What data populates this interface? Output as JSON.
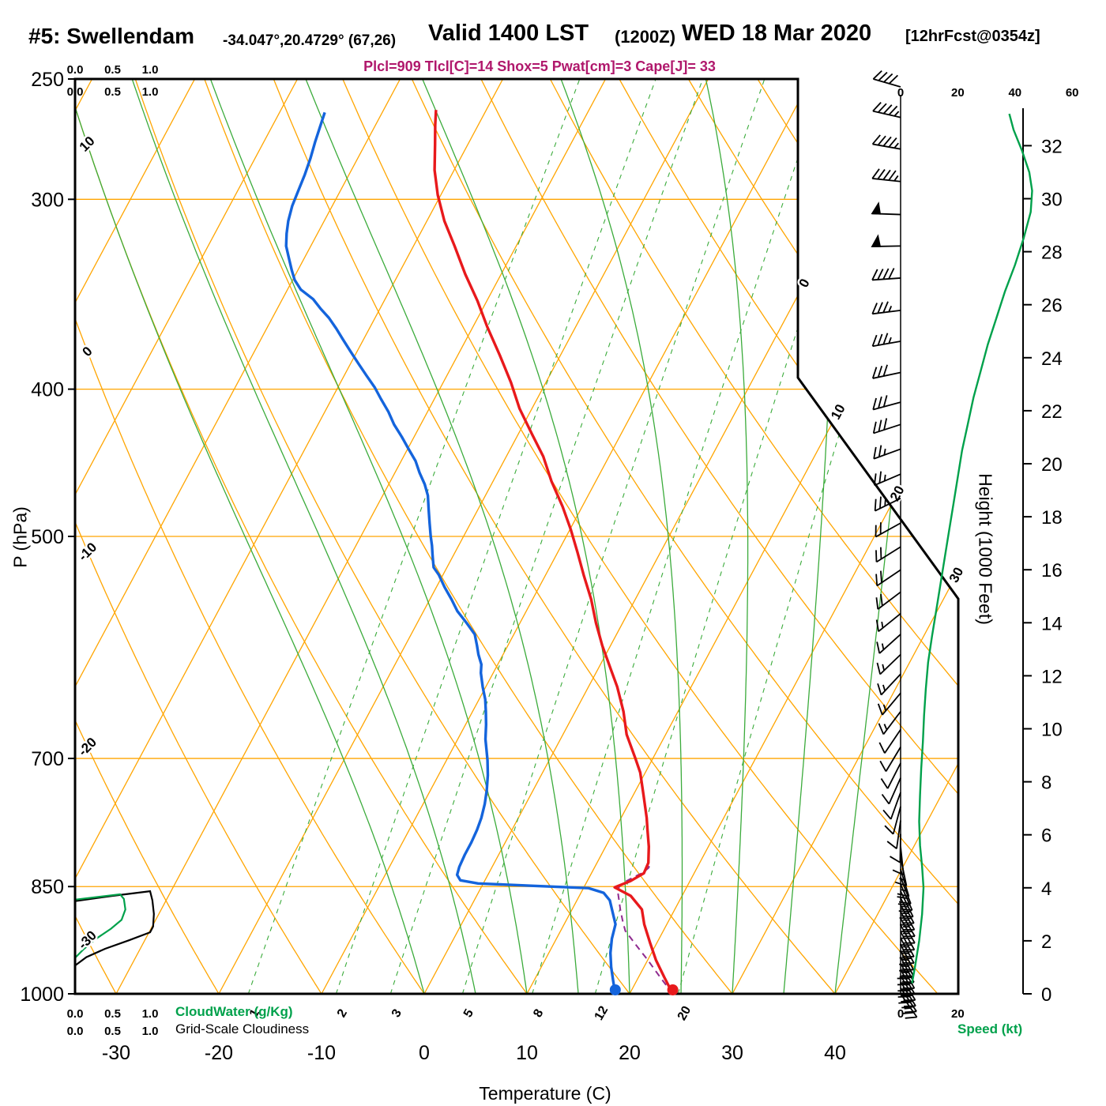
{
  "header": {
    "station": "#5: Swellendam",
    "coords": "-34.047°,20.4729° (67,26)",
    "valid": "Valid 1400 LST",
    "valid_z": "(1200Z)",
    "valid_date": "WED 18 Mar 2020",
    "forecast": "[12hrFcst@0354z]",
    "params": "Plcl=909 Tlcl[C]=14 Shox=5 Pwat[cm]=3 Cape[J]= 33"
  },
  "axes": {
    "pressure": {
      "title": "P (hPa)",
      "ticks": [
        250,
        300,
        400,
        500,
        700,
        850,
        1000
      ]
    },
    "temperature": {
      "title": "Temperature (C)",
      "ticks": [
        -30,
        -20,
        -10,
        0,
        10,
        20,
        30,
        40
      ]
    },
    "height": {
      "title": "Height (1000 Feet)",
      "ticks": [
        32,
        30,
        28,
        26,
        24,
        22,
        20,
        18,
        16,
        14,
        12,
        10,
        8,
        6,
        4,
        2,
        0
      ]
    },
    "speed": {
      "title": "Speed (kt)",
      "top_ticks": [
        0,
        20,
        40,
        60
      ],
      "bottom_ticks": [
        0,
        20
      ]
    },
    "cloud": {
      "green_title": "CloudWater (g/Kg)",
      "black_title": "Grid-Scale Cloudiness",
      "ticks": [
        "0.0",
        "0.5",
        "1.0"
      ]
    }
  },
  "chart_data": {
    "type": "line",
    "subtype": "skew-t log-p sounding",
    "axes_meta": {
      "pressure_hpa_range": [
        250,
        1000
      ],
      "pressure_scale": "log",
      "temperature_c_ticks_range": [
        -30,
        40
      ],
      "height_kft_range": [
        0,
        33
      ],
      "speed_kt_range": [
        0,
        60
      ],
      "cloud_fraction_range": [
        0,
        1
      ]
    },
    "colors": {
      "grid": "#ffa500",
      "green_line": "#3bab3b",
      "green_bold": "#00a14b",
      "temperature": "#e8191c",
      "dewpoint": "#1464dc",
      "parcel": "#8f2a8f",
      "params_text": "#b0186c",
      "frame": "#000000"
    },
    "grid": {
      "isobars": [
        300,
        400,
        500,
        700,
        850,
        1000
      ],
      "isotherms": [
        -80,
        -70,
        -60,
        -50,
        -40,
        -30,
        -20,
        -10,
        0,
        10,
        20,
        30,
        40
      ],
      "isotherm_labels": [
        0,
        10,
        20,
        30
      ],
      "dry_adiabats": [
        -40,
        -30,
        -20,
        -10,
        0,
        10,
        20,
        30,
        40,
        50,
        60,
        70,
        80,
        90,
        100,
        110,
        120,
        130
      ],
      "dry_adiabat_labels": [
        10,
        0,
        -10,
        -20,
        -30
      ],
      "moist_adiabats": [
        0,
        5,
        10,
        15,
        20,
        25,
        30,
        35,
        40
      ],
      "mixing_ratio": [
        1,
        2,
        3,
        5,
        8,
        12,
        20
      ]
    },
    "profiles": {
      "surface_temp": 24.2,
      "surface_dewpoint": 18.6,
      "temperature": [
        [
          1000,
          24.2
        ],
        [
          975,
          22.5
        ],
        [
          950,
          20.8
        ],
        [
          925,
          19.3
        ],
        [
          900,
          17.8
        ],
        [
          880,
          16.8
        ],
        [
          862,
          15.0
        ],
        [
          851,
          13.0
        ],
        [
          843,
          14.2
        ],
        [
          833,
          15.1
        ],
        [
          820,
          15.0
        ],
        [
          800,
          14.2
        ],
        [
          780,
          13.2
        ],
        [
          766,
          12.5
        ],
        [
          740,
          11.0
        ],
        [
          715,
          9.5
        ],
        [
          700,
          8.3
        ],
        [
          675,
          6.2
        ],
        [
          652,
          4.7
        ],
        [
          628,
          2.8
        ],
        [
          613,
          1.4
        ],
        [
          590,
          -0.8
        ],
        [
          570,
          -2.6
        ],
        [
          550,
          -4.3
        ],
        [
          530,
          -6.3
        ],
        [
          512,
          -8.1
        ],
        [
          495,
          -9.9
        ],
        [
          478,
          -11.9
        ],
        [
          460,
          -14.3
        ],
        [
          443,
          -16.4
        ],
        [
          428,
          -18.7
        ],
        [
          412,
          -21.2
        ],
        [
          396,
          -23.4
        ],
        [
          380,
          -25.9
        ],
        [
          364,
          -28.6
        ],
        [
          350,
          -30.9
        ],
        [
          336,
          -33.5
        ],
        [
          322,
          -36.0
        ],
        [
          310,
          -38.3
        ],
        [
          298,
          -40.3
        ],
        [
          287,
          -41.9
        ],
        [
          276,
          -43.2
        ],
        [
          268,
          -44.2
        ],
        [
          262,
          -44.9
        ]
      ],
      "dewpoint": [
        [
          1000,
          18.6
        ],
        [
          980,
          17.7
        ],
        [
          960,
          16.8
        ],
        [
          940,
          16.0
        ],
        [
          920,
          15.4
        ],
        [
          900,
          15.0
        ],
        [
          882,
          14.0
        ],
        [
          868,
          13.2
        ],
        [
          858,
          12.2
        ],
        [
          852,
          10.5
        ],
        [
          849,
          5.0
        ],
        [
          846,
          -0.5
        ],
        [
          842,
          -2.4
        ],
        [
          835,
          -3.0
        ],
        [
          825,
          -3.2
        ],
        [
          810,
          -3.3
        ],
        [
          795,
          -3.3
        ],
        [
          780,
          -3.4
        ],
        [
          766,
          -3.6
        ],
        [
          750,
          -4.0
        ],
        [
          735,
          -4.5
        ],
        [
          718,
          -5.2
        ],
        [
          702,
          -6.0
        ],
        [
          690,
          -6.7
        ],
        [
          680,
          -7.3
        ],
        [
          665,
          -8.0
        ],
        [
          652,
          -8.7
        ],
        [
          640,
          -9.4
        ],
        [
          628,
          -10.3
        ],
        [
          615,
          -11.2
        ],
        [
          607,
          -11.6
        ],
        [
          598,
          -12.4
        ],
        [
          590,
          -13.0
        ],
        [
          580,
          -13.8
        ],
        [
          570,
          -15.2
        ],
        [
          560,
          -16.7
        ],
        [
          550,
          -17.9
        ],
        [
          540,
          -19.2
        ],
        [
          530,
          -20.4
        ],
        [
          524,
          -21.3
        ],
        [
          515,
          -22.0
        ],
        [
          507,
          -22.6
        ],
        [
          500,
          -23.2
        ],
        [
          490,
          -24.0
        ],
        [
          480,
          -24.8
        ],
        [
          470,
          -25.6
        ],
        [
          462,
          -26.5
        ],
        [
          454,
          -27.6
        ],
        [
          446,
          -28.6
        ],
        [
          438,
          -29.9
        ],
        [
          430,
          -31.2
        ],
        [
          422,
          -32.6
        ],
        [
          414,
          -33.8
        ],
        [
          406,
          -35.2
        ],
        [
          399,
          -36.4
        ],
        [
          392,
          -37.8
        ],
        [
          385,
          -39.2
        ],
        [
          378,
          -40.6
        ],
        [
          371,
          -42.0
        ],
        [
          365,
          -43.2
        ],
        [
          359,
          -44.5
        ],
        [
          354,
          -45.8
        ],
        [
          349,
          -47.0
        ],
        [
          344,
          -48.7
        ],
        [
          339,
          -49.8
        ],
        [
          334,
          -50.6
        ],
        [
          328,
          -51.5
        ],
        [
          322,
          -52.4
        ],
        [
          316,
          -53.0
        ],
        [
          310,
          -53.5
        ],
        [
          303,
          -53.9
        ],
        [
          296,
          -54.1
        ],
        [
          289,
          -54.3
        ],
        [
          282,
          -54.6
        ],
        [
          275,
          -55.0
        ],
        [
          269,
          -55.3
        ],
        [
          263,
          -55.6
        ]
      ],
      "parcel": [
        [
          1000,
          24.2
        ],
        [
          975,
          22.1
        ],
        [
          950,
          20.0
        ],
        [
          930,
          18.2
        ],
        [
          909,
          16.3
        ],
        [
          895,
          15.5
        ],
        [
          880,
          14.7
        ],
        [
          868,
          14.1
        ],
        [
          858,
          13.6
        ],
        [
          851,
          13.4
        ],
        [
          845,
          13.6
        ],
        [
          838,
          14.3
        ],
        [
          832,
          15.0
        ],
        [
          826,
          15.3
        ],
        [
          820,
          15.1
        ]
      ]
    },
    "winds": [
      [
        1000,
        145,
        25
      ],
      [
        991,
        146,
        28
      ],
      [
        982,
        148,
        30
      ],
      [
        973,
        149,
        30
      ],
      [
        964,
        150,
        30
      ],
      [
        955,
        151,
        28
      ],
      [
        946,
        152,
        27
      ],
      [
        937,
        153,
        26
      ],
      [
        928,
        153,
        25
      ],
      [
        919,
        152,
        24
      ],
      [
        910,
        152,
        23
      ],
      [
        901,
        151,
        22
      ],
      [
        892,
        150,
        23
      ],
      [
        883,
        150,
        24
      ],
      [
        874,
        151,
        25
      ],
      [
        865,
        152,
        25
      ],
      [
        856,
        154,
        23
      ],
      [
        847,
        156,
        20
      ],
      [
        838,
        159,
        18
      ],
      [
        828,
        163,
        15
      ],
      [
        814,
        168,
        13
      ],
      [
        800,
        174,
        12
      ],
      [
        785,
        181,
        11
      ],
      [
        769,
        188,
        10
      ],
      [
        753,
        195,
        10
      ],
      [
        737,
        200,
        10
      ],
      [
        721,
        204,
        10
      ],
      [
        705,
        207,
        11
      ],
      [
        688,
        211,
        12
      ],
      [
        670,
        214,
        12
      ],
      [
        652,
        217,
        13
      ],
      [
        634,
        220,
        14
      ],
      [
        616,
        223,
        15
      ],
      [
        598,
        226,
        15
      ],
      [
        580,
        228,
        16
      ],
      [
        562,
        231,
        17
      ],
      [
        544,
        233,
        18
      ],
      [
        526,
        236,
        19
      ],
      [
        508,
        238,
        20
      ],
      [
        490,
        241,
        22
      ],
      [
        472,
        244,
        23
      ],
      [
        455,
        247,
        25
      ],
      [
        438,
        250,
        26
      ],
      [
        422,
        252,
        28
      ],
      [
        408,
        255,
        29
      ],
      [
        390,
        258,
        31
      ],
      [
        372,
        260,
        33
      ],
      [
        355,
        263,
        36
      ],
      [
        338,
        266,
        40
      ],
      [
        322,
        269,
        50
      ],
      [
        307,
        272,
        50
      ],
      [
        292,
        276,
        46
      ],
      [
        278,
        280,
        45
      ],
      [
        265,
        283,
        44
      ],
      [
        253,
        286,
        42
      ]
    ],
    "speed_profile": [
      [
        0.4,
        4
      ],
      [
        1,
        5
      ],
      [
        2,
        6.5
      ],
      [
        3,
        7.5
      ],
      [
        4,
        8
      ],
      [
        4.8,
        7.5
      ],
      [
        5.6,
        6.8
      ],
      [
        6.5,
        6.5
      ],
      [
        7.5,
        6.8
      ],
      [
        8.5,
        7.2
      ],
      [
        9.5,
        7.8
      ],
      [
        10.5,
        8.2
      ],
      [
        11.5,
        8.8
      ],
      [
        12.5,
        9.6
      ],
      [
        13.5,
        11
      ],
      [
        14.5,
        12.5
      ],
      [
        15.5,
        14
      ],
      [
        16.5,
        15.5
      ],
      [
        17.5,
        17
      ],
      [
        18.5,
        18.5
      ],
      [
        19.5,
        20
      ],
      [
        20.5,
        21.5
      ],
      [
        21.5,
        23.5
      ],
      [
        22.5,
        25.5
      ],
      [
        23.5,
        28
      ],
      [
        24.5,
        30.5
      ],
      [
        25.5,
        33.5
      ],
      [
        26.5,
        36.5
      ],
      [
        27.5,
        40
      ],
      [
        28.5,
        43
      ],
      [
        29.5,
        45.5
      ],
      [
        30.3,
        46
      ],
      [
        31,
        45
      ],
      [
        31.8,
        42.5
      ],
      [
        32.6,
        39.5
      ],
      [
        33.2,
        38
      ]
    ],
    "cloud": {
      "grid_scale": [
        [
          869,
          0
        ],
        [
          862,
          0.5
        ],
        [
          856,
          1.0
        ],
        [
          868,
          1.03
        ],
        [
          886,
          1.05
        ],
        [
          903,
          1.04
        ],
        [
          911,
          1.0
        ],
        [
          922,
          0.72
        ],
        [
          934,
          0.4
        ],
        [
          946,
          0.15
        ],
        [
          958,
          0
        ]
      ],
      "cloud_water": [
        [
          867,
          0
        ],
        [
          860,
          0.6
        ],
        [
          866,
          0.65
        ],
        [
          880,
          0.67
        ],
        [
          894,
          0.62
        ],
        [
          906,
          0.48
        ],
        [
          920,
          0.28
        ],
        [
          934,
          0.12
        ],
        [
          947,
          0
        ]
      ]
    }
  }
}
